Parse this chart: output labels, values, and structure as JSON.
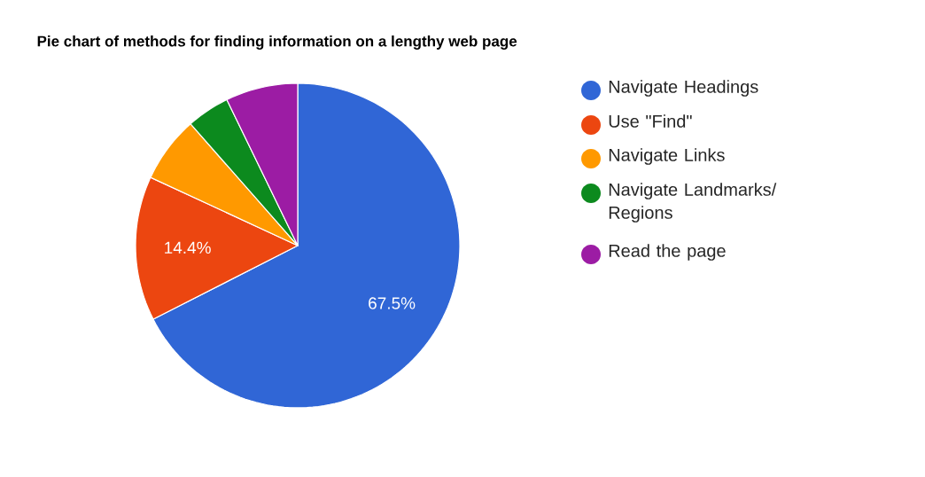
{
  "chart_data": {
    "type": "pie",
    "title": "Pie chart of methods for finding information on a lengthy web page",
    "categories": [
      "Navigate Headings",
      "Use \"Find\"",
      "Navigate Links",
      "Navigate Landmarks/ Regions",
      "Read the page"
    ],
    "values": [
      67.5,
      14.4,
      6.6,
      4.3,
      7.2
    ],
    "colors": [
      "#3066d6",
      "#ec4610",
      "#ff9900",
      "#0c8a1e",
      "#9c1ca4"
    ],
    "value_labels": [
      "67.5%",
      "14.4%",
      null,
      null,
      null
    ],
    "legend": "right"
  }
}
